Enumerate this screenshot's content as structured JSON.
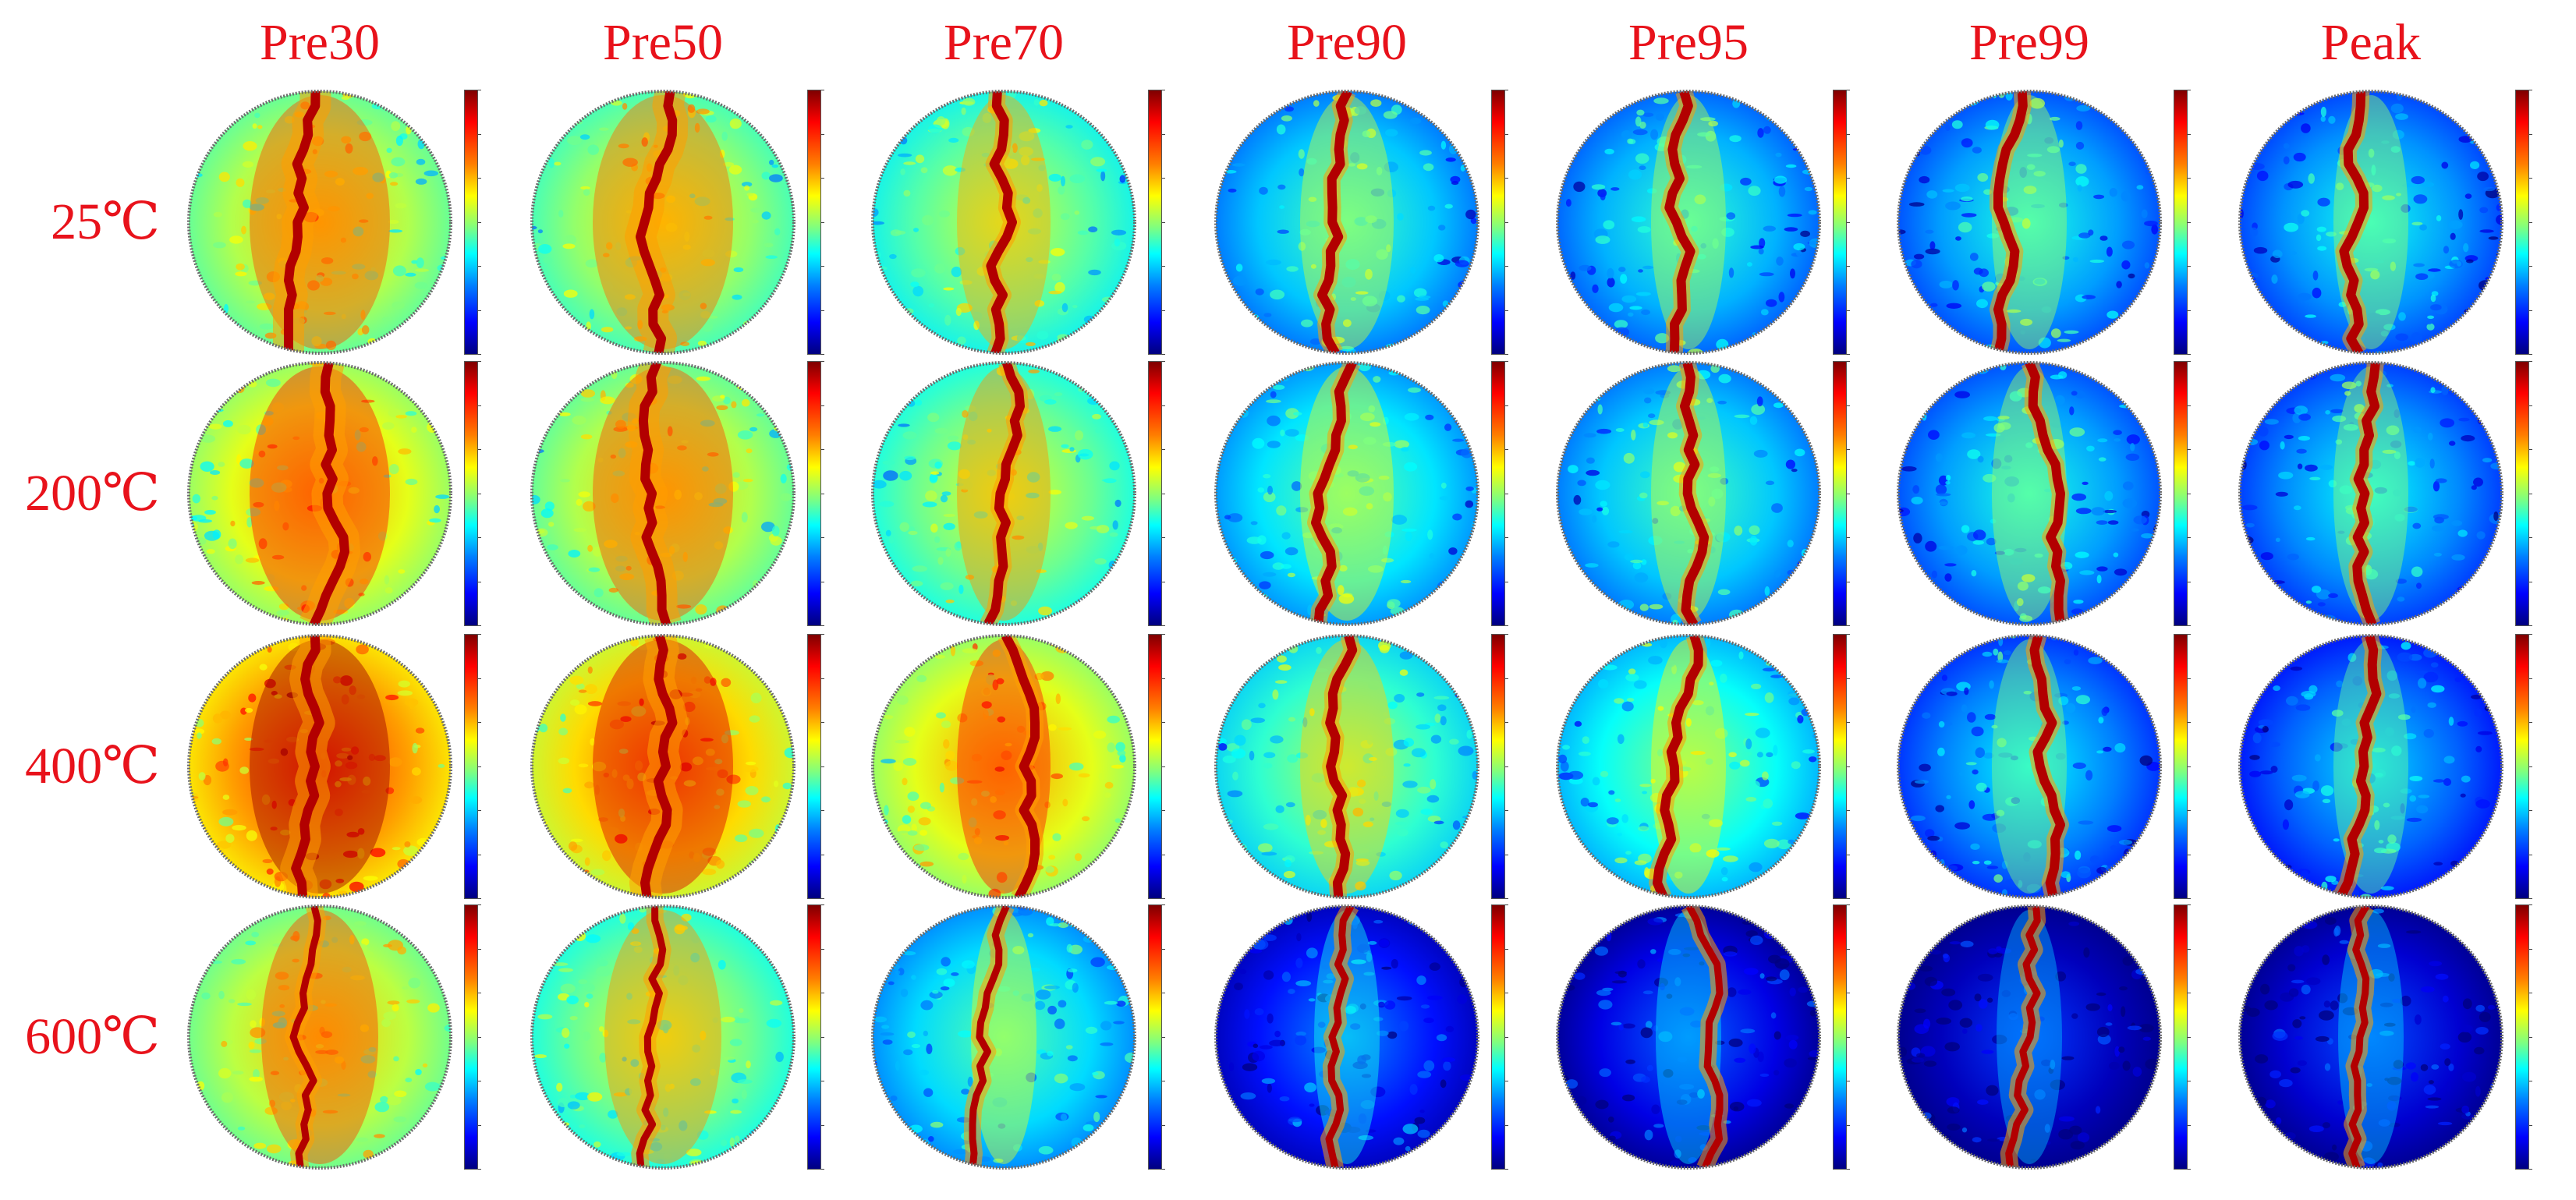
{
  "figure": {
    "columns": [
      {
        "label": "Pre30"
      },
      {
        "label": "Pre50"
      },
      {
        "label": "Pre70"
      },
      {
        "label": "Pre90"
      },
      {
        "label": "Pre95"
      },
      {
        "label": "Pre99"
      },
      {
        "label": "Peak"
      }
    ],
    "rows": [
      {
        "label": "25℃"
      },
      {
        "label": "200℃"
      },
      {
        "label": "400℃"
      },
      {
        "label": "600℃"
      }
    ],
    "label_color": "#e8121b",
    "colormap": [
      "#00007f",
      "#0000ff",
      "#007fff",
      "#00ffff",
      "#7fff7f",
      "#ffff00",
      "#ff7f00",
      "#ff0000",
      "#7f0000"
    ],
    "background_level_by_row": [
      [
        0.55,
        0.52,
        0.46,
        0.32,
        0.3,
        0.28,
        0.27
      ],
      [
        0.6,
        0.55,
        0.48,
        0.35,
        0.32,
        0.28,
        0.26
      ],
      [
        0.72,
        0.66,
        0.6,
        0.42,
        0.38,
        0.25,
        0.22
      ],
      [
        0.56,
        0.48,
        0.34,
        0.14,
        0.1,
        0.06,
        0.08
      ]
    ]
  }
}
